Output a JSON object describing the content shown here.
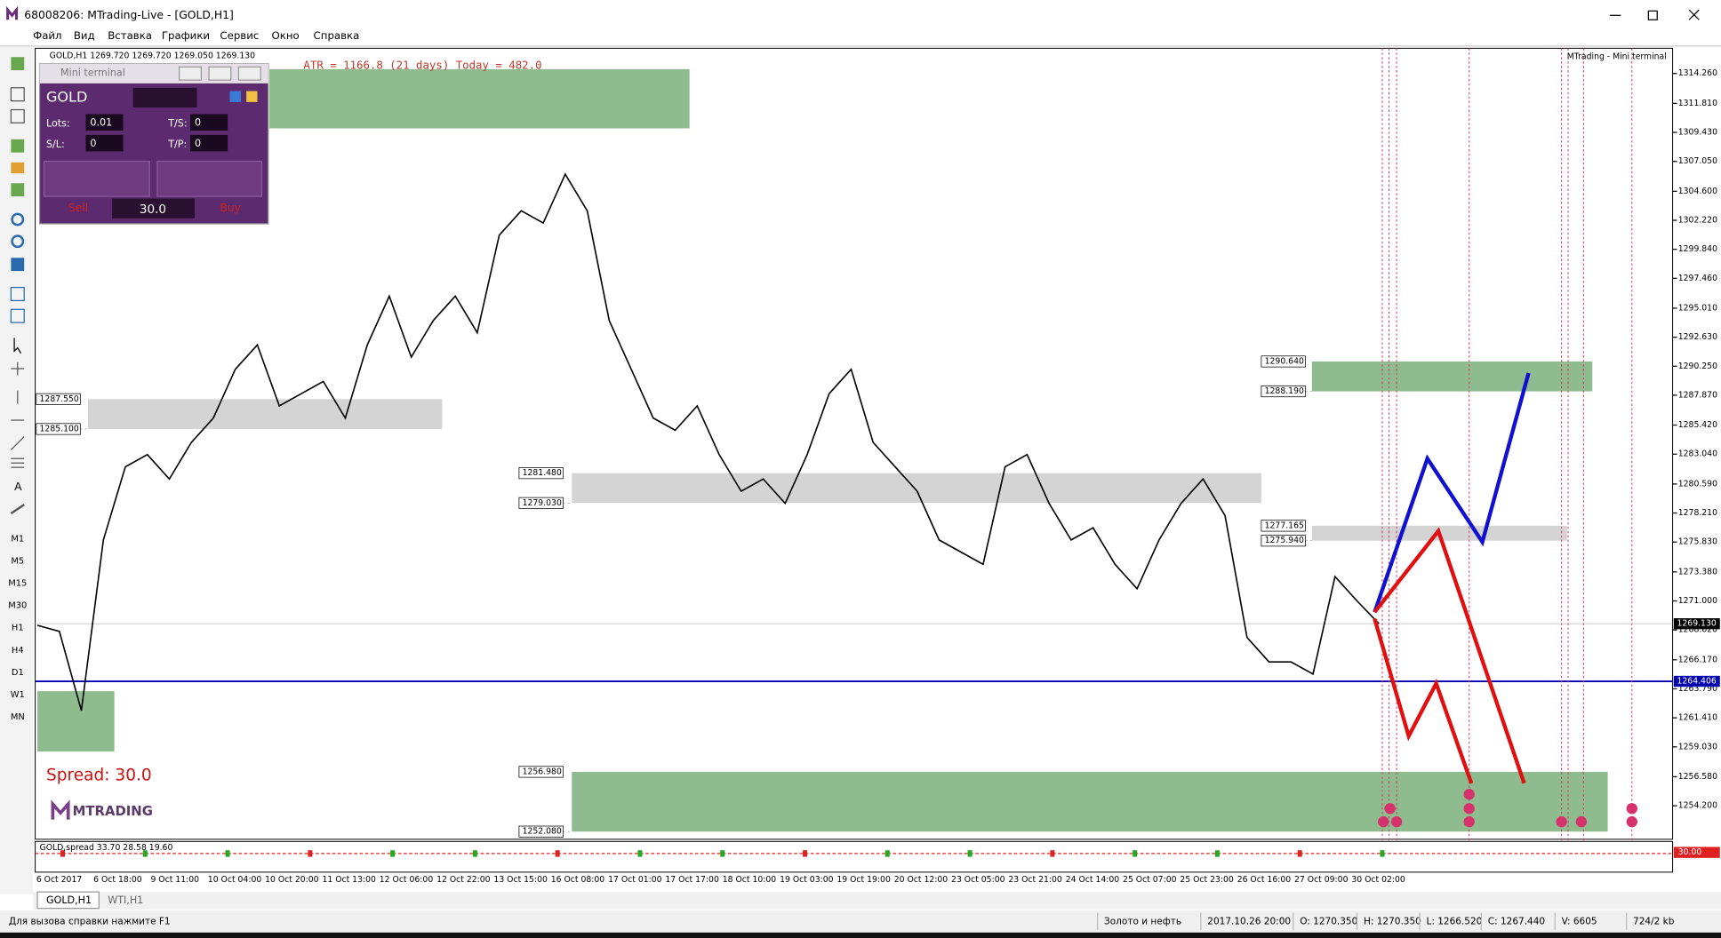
{
  "window": {
    "title": "68008206: MTrading-Live - [GOLD,H1]"
  },
  "menu": [
    "Файл",
    "Вид",
    "Вставка",
    "Графики",
    "Сервис",
    "Окно",
    "Справка"
  ],
  "timeframes": [
    "M1",
    "M5",
    "M15",
    "M30",
    "H1",
    "H4",
    "D1",
    "W1",
    "MN"
  ],
  "mini_terminal": {
    "title": "Mini terminal",
    "symbol": "GOLD",
    "lots_label": "Lots:",
    "lots": "0.01",
    "ts_label": "T/S:",
    "ts": "0",
    "sl_label": "S/L:",
    "sl": "0",
    "tp_label": "T/P:",
    "tp": "0",
    "spread": "30.0",
    "sell": "Sell",
    "buy": "Buy"
  },
  "chart_data": {
    "type": "line",
    "header": "GOLD,H1 1269.720 1269.720 1269.050 1269.130",
    "atr": "ATR = 1166.8  (21 days)  Today = 482.0",
    "brand": "MTrading - Mini terminal",
    "spread_label": "Spread:  30.0",
    "logo": "MTRADING",
    "color": "#000000",
    "values": [
      1269,
      1268.5,
      1262,
      1276,
      1282,
      1283,
      1281,
      1284,
      1286,
      1290,
      1292,
      1287,
      1288,
      1289,
      1286,
      1292,
      1296,
      1291,
      1294,
      1296,
      1293,
      1301,
      1303,
      1302,
      1306,
      1303,
      1294,
      1290,
      1286,
      1285,
      1287,
      1283,
      1280,
      1281,
      1279,
      1283,
      1288,
      1290,
      1284,
      1282,
      1280,
      1276,
      1275,
      1274,
      1282,
      1283,
      1279,
      1276,
      1277,
      1274,
      1272,
      1276,
      1279,
      1281,
      1278,
      1268,
      1266,
      1266,
      1265,
      1273,
      1271,
      1269.13
    ],
    "x_axis_labels": [
      "6 Oct 2017",
      "6 Oct 18:00",
      "9 Oct 11:00",
      "10 Oct 04:00",
      "10 Oct 20:00",
      "11 Oct 13:00",
      "12 Oct 06:00",
      "12 Oct 22:00",
      "13 Oct 15:00",
      "16 Oct 08:00",
      "17 Oct 01:00",
      "17 Oct 17:00",
      "18 Oct 10:00",
      "19 Oct 03:00",
      "19 Oct 19:00",
      "20 Oct 12:00",
      "23 Oct 05:00",
      "23 Oct 21:00",
      "24 Oct 14:00",
      "25 Oct 07:00",
      "25 Oct 23:00",
      "26 Oct 16:00",
      "27 Oct 09:00",
      "30 Oct 02:00"
    ],
    "ylim": [
      1251.45,
      1316.33
    ],
    "yticks": [
      {
        "value": 1314.26,
        "label": "1314.260"
      },
      {
        "value": 1311.81,
        "label": "1311.810"
      },
      {
        "value": 1309.43,
        "label": "1309.430"
      },
      {
        "value": 1307.05,
        "label": "1307.050"
      },
      {
        "value": 1304.6,
        "label": "1304.600"
      },
      {
        "value": 1302.22,
        "label": "1302.220"
      },
      {
        "value": 1299.84,
        "label": "1299.840"
      },
      {
        "value": 1297.46,
        "label": "1297.460"
      },
      {
        "value": 1295.01,
        "label": "1295.010"
      },
      {
        "value": 1292.63,
        "label": "1292.630"
      },
      {
        "value": 1290.25,
        "label": "1290.250"
      },
      {
        "value": 1287.87,
        "label": "1287.870"
      },
      {
        "value": 1285.42,
        "label": "1285.420"
      },
      {
        "value": 1283.04,
        "label": "1283.040"
      },
      {
        "value": 1280.59,
        "label": "1280.590"
      },
      {
        "value": 1278.21,
        "label": "1278.210"
      },
      {
        "value": 1275.83,
        "label": "1275.830"
      },
      {
        "value": 1273.38,
        "label": "1273.380"
      },
      {
        "value": 1271,
        "label": "1271.000"
      },
      {
        "value": 1268.62,
        "label": "1268.620"
      },
      {
        "value": 1266.17,
        "label": "1266.170"
      },
      {
        "value": 1263.79,
        "label": "1263.790"
      },
      {
        "value": 1261.41,
        "label": "1261.410"
      },
      {
        "value": 1259.03,
        "label": "1259.030"
      },
      {
        "value": 1256.58,
        "label": "1256.580"
      },
      {
        "value": 1254.2,
        "label": "1254.200"
      }
    ],
    "zones": [
      {
        "top": {
          "value": 1287.55,
          "label": "1287.550"
        },
        "bottom": {
          "value": 1285.1,
          "label": "1285.100"
        },
        "color": "#d4d4d4"
      },
      {
        "top": {
          "value": 1281.48,
          "label": "1281.480"
        },
        "bottom": {
          "value": 1279.03,
          "label": "1279.030"
        },
        "color": "#d4d4d4"
      },
      {
        "top": {
          "value": 1277.165,
          "label": "1277.165"
        },
        "bottom": {
          "value": 1275.94,
          "label": "1275.940"
        },
        "color": "#d4d4d4"
      },
      {
        "top": {
          "value": 1290.64,
          "label": "1290.640"
        },
        "bottom": {
          "value": 1288.19,
          "label": "1288.190"
        },
        "color": "#8fbc8f"
      },
      {
        "top": {
          "value": 1256.98,
          "label": "1256.980"
        },
        "bottom": {
          "value": 1252.08,
          "label": "1252.080"
        },
        "color": "#8fbc8f"
      }
    ],
    "hline": {
      "value": 1264.406,
      "label": "1264.406",
      "color": "#0000b0"
    },
    "last_price": {
      "value": 1269.13,
      "label": "1269.130"
    }
  },
  "indicator": {
    "label": "GOLD,spread 33.70 28.58 19.60",
    "axis_label": "30.00"
  },
  "tabs": [
    "GOLD,H1",
    "WTI,H1"
  ],
  "status": [
    "Для вызова справки нажмите F1",
    "Золото и нефть",
    "2017.10.26 20:00",
    "O: 1270.350",
    "H: 1270.350",
    "L: 1266.520",
    "C: 1267.440",
    "V: 6605",
    "724/2 kb"
  ]
}
